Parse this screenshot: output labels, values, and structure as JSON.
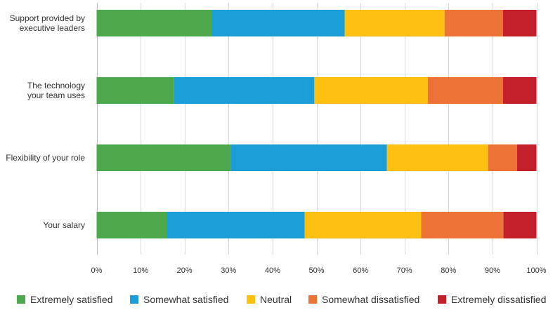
{
  "chart_data": {
    "type": "bar",
    "orientation": "horizontal",
    "stacked": true,
    "percent_stacked": true,
    "categories": [
      [
        "Support provided by",
        "executive leaders"
      ],
      [
        "The technology",
        "your team uses"
      ],
      [
        "Flexibility of your role"
      ],
      [
        "Your salary"
      ]
    ],
    "series": [
      {
        "name": "Extremely satisfied",
        "color": "#4ca84a",
        "values": [
          26.2,
          17.6,
          30.5,
          15.9
        ]
      },
      {
        "name": "Somewhat satisfied",
        "color": "#1b9ed8",
        "values": [
          30.2,
          31.9,
          35.5,
          31.4
        ]
      },
      {
        "name": "Neutral",
        "color": "#fdbf10",
        "values": [
          22.7,
          25.8,
          23.0,
          26.5
        ]
      },
      {
        "name": "Somewhat dissatisfied",
        "color": "#ec7236",
        "values": [
          13.3,
          17.1,
          6.6,
          18.7
        ]
      },
      {
        "name": "Extremely dissatisfied",
        "color": "#c3202b",
        "values": [
          7.6,
          7.6,
          4.4,
          7.5
        ]
      }
    ],
    "x_ticks": [
      "0%",
      "10%",
      "20%",
      "30%",
      "40%",
      "50%",
      "60%",
      "70%",
      "80%",
      "90%",
      "100%"
    ],
    "xlim": [
      0,
      100
    ],
    "grid": true,
    "legend_position": "bottom"
  }
}
